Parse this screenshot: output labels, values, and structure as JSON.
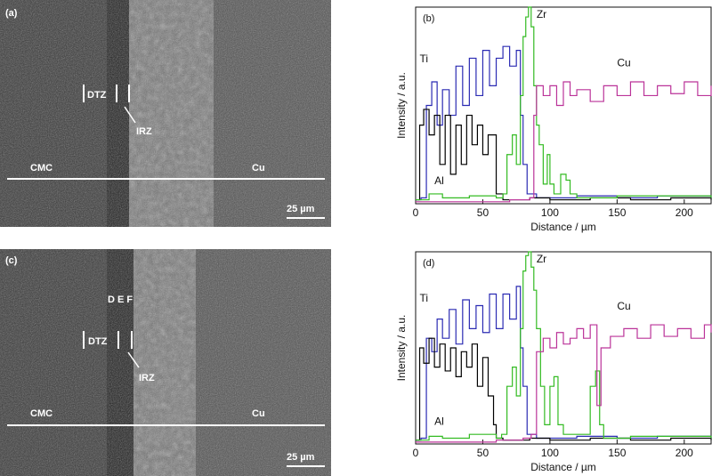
{
  "micrographs": [
    {
      "panel_label": "(a)",
      "labels": {
        "dtz": "DTZ",
        "irz": "IRZ",
        "cmc": "CMC",
        "cu": "Cu"
      },
      "scale_bar": "25 µm"
    },
    {
      "panel_label": "(c)",
      "labels": {
        "dtz": "DTZ",
        "irz": "IRZ",
        "cmc": "CMC",
        "cu": "Cu",
        "points": "D E F"
      },
      "scale_bar": "25 µm"
    }
  ],
  "chart_data": [
    {
      "type": "line",
      "panel_label": "(b)",
      "xlabel": "Distance / µm",
      "ylabel": "Intensity / a.u.",
      "xlim": [
        0,
        220
      ],
      "ylim": [
        0,
        100
      ],
      "x_ticks": [
        0,
        50,
        100,
        150,
        200
      ],
      "series": [
        {
          "name": "Ti",
          "color": "#2b2bb3",
          "points": [
            [
              0,
              2
            ],
            [
              4,
              3
            ],
            [
              8,
              50
            ],
            [
              12,
              62
            ],
            [
              16,
              40
            ],
            [
              20,
              58
            ],
            [
              25,
              45
            ],
            [
              30,
              70
            ],
            [
              35,
              50
            ],
            [
              40,
              74
            ],
            [
              45,
              55
            ],
            [
              50,
              78
            ],
            [
              55,
              60
            ],
            [
              60,
              74
            ],
            [
              65,
              80
            ],
            [
              70,
              70
            ],
            [
              75,
              78
            ],
            [
              78,
              45
            ],
            [
              80,
              20
            ],
            [
              83,
              5
            ],
            [
              90,
              3
            ],
            [
              120,
              4
            ],
            [
              150,
              3
            ],
            [
              180,
              4
            ],
            [
              220,
              3
            ]
          ]
        },
        {
          "name": "Al",
          "color": "#000000",
          "points": [
            [
              0,
              2
            ],
            [
              3,
              40
            ],
            [
              6,
              48
            ],
            [
              10,
              35
            ],
            [
              14,
              45
            ],
            [
              18,
              20
            ],
            [
              22,
              45
            ],
            [
              26,
              15
            ],
            [
              30,
              40
            ],
            [
              34,
              20
            ],
            [
              38,
              45
            ],
            [
              42,
              30
            ],
            [
              46,
              40
            ],
            [
              50,
              25
            ],
            [
              54,
              35
            ],
            [
              58,
              35
            ],
            [
              60,
              5
            ],
            [
              65,
              2
            ],
            [
              85,
              3
            ],
            [
              100,
              2
            ],
            [
              130,
              3
            ],
            [
              160,
              2
            ],
            [
              190,
              3
            ],
            [
              220,
              2
            ]
          ]
        },
        {
          "name": "Zr",
          "color": "#33bb22",
          "points": [
            [
              0,
              2
            ],
            [
              10,
              5
            ],
            [
              20,
              3
            ],
            [
              40,
              4
            ],
            [
              60,
              3
            ],
            [
              65,
              5
            ],
            [
              68,
              25
            ],
            [
              72,
              35
            ],
            [
              75,
              20
            ],
            [
              78,
              55
            ],
            [
              80,
              85
            ],
            [
              82,
              95
            ],
            [
              84,
              100
            ],
            [
              86,
              90
            ],
            [
              88,
              60
            ],
            [
              90,
              40
            ],
            [
              92,
              30
            ],
            [
              95,
              10
            ],
            [
              98,
              25
            ],
            [
              100,
              10
            ],
            [
              103,
              5
            ],
            [
              108,
              15
            ],
            [
              112,
              12
            ],
            [
              115,
              5
            ],
            [
              120,
              3
            ],
            [
              150,
              4
            ],
            [
              220,
              3
            ]
          ]
        },
        {
          "name": "Cu",
          "color": "#bb3399",
          "points": [
            [
              0,
              1
            ],
            [
              50,
              1
            ],
            [
              70,
              2
            ],
            [
              85,
              3
            ],
            [
              88,
              45
            ],
            [
              90,
              60
            ],
            [
              95,
              55
            ],
            [
              100,
              60
            ],
            [
              105,
              50
            ],
            [
              110,
              62
            ],
            [
              115,
              55
            ],
            [
              120,
              58
            ],
            [
              130,
              52
            ],
            [
              140,
              60
            ],
            [
              150,
              55
            ],
            [
              160,
              62
            ],
            [
              170,
              55
            ],
            [
              180,
              60
            ],
            [
              190,
              56
            ],
            [
              200,
              62
            ],
            [
              210,
              55
            ],
            [
              220,
              60
            ]
          ]
        }
      ]
    },
    {
      "type": "line",
      "panel_label": "(d)",
      "xlabel": "Distance / µm",
      "ylabel": "Intensity / a.u.",
      "xlim": [
        0,
        220
      ],
      "ylim": [
        0,
        100
      ],
      "x_ticks": [
        0,
        50,
        100,
        150,
        200
      ],
      "series": [
        {
          "name": "Ti",
          "color": "#2b2bb3",
          "points": [
            [
              0,
              2
            ],
            [
              4,
              3
            ],
            [
              8,
              55
            ],
            [
              12,
              48
            ],
            [
              16,
              65
            ],
            [
              20,
              55
            ],
            [
              25,
              70
            ],
            [
              30,
              52
            ],
            [
              35,
              75
            ],
            [
              40,
              60
            ],
            [
              45,
              72
            ],
            [
              50,
              58
            ],
            [
              55,
              78
            ],
            [
              60,
              60
            ],
            [
              65,
              78
            ],
            [
              70,
              65
            ],
            [
              75,
              82
            ],
            [
              78,
              50
            ],
            [
              80,
              30
            ],
            [
              83,
              5
            ],
            [
              90,
              3
            ],
            [
              120,
              4
            ],
            [
              150,
              3
            ],
            [
              180,
              4
            ],
            [
              220,
              3
            ]
          ]
        },
        {
          "name": "Al",
          "color": "#000000",
          "points": [
            [
              0,
              2
            ],
            [
              3,
              50
            ],
            [
              6,
              42
            ],
            [
              10,
              55
            ],
            [
              14,
              40
            ],
            [
              18,
              52
            ],
            [
              22,
              38
            ],
            [
              26,
              50
            ],
            [
              30,
              35
            ],
            [
              34,
              48
            ],
            [
              38,
              40
            ],
            [
              42,
              52
            ],
            [
              46,
              30
            ],
            [
              50,
              45
            ],
            [
              54,
              25
            ],
            [
              58,
              10
            ],
            [
              60,
              3
            ],
            [
              65,
              2
            ],
            [
              85,
              3
            ],
            [
              100,
              2
            ],
            [
              130,
              3
            ],
            [
              160,
              2
            ],
            [
              190,
              3
            ],
            [
              220,
              2
            ]
          ]
        },
        {
          "name": "Zr",
          "color": "#33bb22",
          "points": [
            [
              0,
              2
            ],
            [
              10,
              4
            ],
            [
              20,
              3
            ],
            [
              40,
              5
            ],
            [
              60,
              3
            ],
            [
              64,
              5
            ],
            [
              68,
              30
            ],
            [
              72,
              40
            ],
            [
              75,
              25
            ],
            [
              78,
              60
            ],
            [
              80,
              90
            ],
            [
              82,
              98
            ],
            [
              84,
              100
            ],
            [
              86,
              92
            ],
            [
              88,
              80
            ],
            [
              90,
              60
            ],
            [
              93,
              30
            ],
            [
              96,
              10
            ],
            [
              100,
              30
            ],
            [
              103,
              35
            ],
            [
              106,
              10
            ],
            [
              110,
              5
            ],
            [
              125,
              5
            ],
            [
              130,
              30
            ],
            [
              134,
              38
            ],
            [
              137,
              10
            ],
            [
              140,
              3
            ],
            [
              160,
              4
            ],
            [
              220,
              3
            ]
          ]
        },
        {
          "name": "Cu",
          "color": "#bb3399",
          "points": [
            [
              0,
              1
            ],
            [
              60,
              2
            ],
            [
              80,
              3
            ],
            [
              86,
              5
            ],
            [
              90,
              48
            ],
            [
              95,
              55
            ],
            [
              100,
              50
            ],
            [
              105,
              58
            ],
            [
              110,
              52
            ],
            [
              115,
              55
            ],
            [
              120,
              60
            ],
            [
              125,
              55
            ],
            [
              130,
              62
            ],
            [
              135,
              20
            ],
            [
              138,
              50
            ],
            [
              145,
              56
            ],
            [
              155,
              60
            ],
            [
              165,
              55
            ],
            [
              175,
              62
            ],
            [
              185,
              56
            ],
            [
              195,
              60
            ],
            [
              205,
              55
            ],
            [
              215,
              62
            ],
            [
              220,
              58
            ]
          ]
        }
      ]
    }
  ]
}
